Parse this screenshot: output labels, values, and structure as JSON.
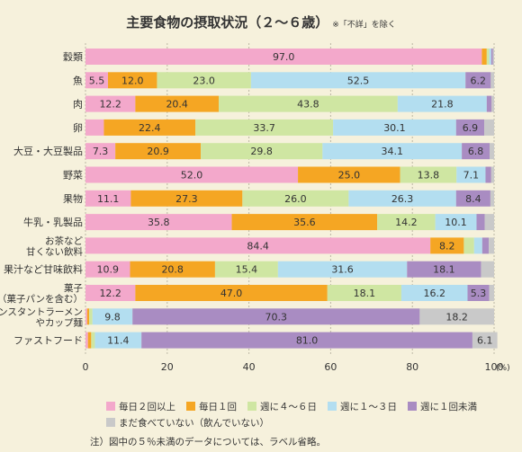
{
  "title": "主要食物の摂取状況（２〜６歳）",
  "note": "※「不詳」を除く",
  "footnote": "注）図中の５％未満のデータについては、ラベル省略。",
  "colors": [
    "#f3a8cb",
    "#f5a623",
    "#cfe6a2",
    "#b3def0",
    "#a98cc2",
    "#c9c9c9"
  ],
  "chart_data": {
    "type": "bar",
    "orientation": "horizontal",
    "stacked": true,
    "categories": [
      "穀類",
      "魚",
      "肉",
      "卵",
      "大豆・大豆製品",
      "野菜",
      "果物",
      "牛乳・乳製品",
      "お茶など\n甘くない飲料",
      "果汁など甘味飲料",
      "菓子\n（菓子パンを含む）",
      "インスタントラーメン\nやカップ麺",
      "ファストフード"
    ],
    "series": [
      {
        "name": "毎日２回以上",
        "values": [
          97.0,
          5.5,
          12.2,
          4.5,
          7.3,
          52.0,
          11.1,
          35.8,
          84.4,
          10.9,
          12.2,
          0.4,
          0.6
        ]
      },
      {
        "name": "毎日１回",
        "values": [
          1.2,
          12.0,
          20.4,
          22.4,
          20.9,
          25.0,
          27.3,
          35.6,
          8.2,
          20.8,
          47.0,
          0.5,
          0.8
        ]
      },
      {
        "name": "週に４〜６日",
        "values": [
          0.6,
          23.0,
          43.8,
          33.7,
          29.8,
          13.8,
          26.0,
          14.2,
          2.5,
          15.4,
          18.1,
          0.8,
          0.9
        ]
      },
      {
        "name": "週に１〜３日",
        "values": [
          0.5,
          52.5,
          21.8,
          30.1,
          34.1,
          7.1,
          26.3,
          10.1,
          2.0,
          31.6,
          16.2,
          9.8,
          11.4
        ]
      },
      {
        "name": "週に１回未満",
        "values": [
          0.4,
          6.2,
          1.2,
          6.9,
          6.8,
          1.4,
          8.4,
          2.0,
          1.6,
          18.1,
          5.3,
          70.3,
          81.0
        ]
      },
      {
        "name": "まだ食べていない（飲んでいない）",
        "values": [
          0.3,
          0.8,
          0.6,
          2.4,
          1.1,
          0.7,
          0.9,
          2.3,
          1.3,
          3.2,
          1.2,
          18.2,
          6.1
        ]
      }
    ],
    "labels_shown": [
      [
        "97.0",
        "",
        "",
        "",
        "",
        ""
      ],
      [
        "5.5",
        "12.0",
        "23.0",
        "52.5",
        "6.2",
        ""
      ],
      [
        "12.2",
        "20.4",
        "43.8",
        "21.8",
        "",
        ""
      ],
      [
        "",
        "22.4",
        "33.7",
        "30.1",
        "6.9",
        ""
      ],
      [
        "7.3",
        "20.9",
        "29.8",
        "34.1",
        "6.8",
        ""
      ],
      [
        "52.0",
        "25.0",
        "13.8",
        "7.1",
        "",
        ""
      ],
      [
        "11.1",
        "27.3",
        "26.0",
        "26.3",
        "8.4",
        ""
      ],
      [
        "35.8",
        "35.6",
        "14.2",
        "10.1",
        "",
        ""
      ],
      [
        "84.4",
        "8.2",
        "",
        "",
        "",
        ""
      ],
      [
        "10.9",
        "20.8",
        "15.4",
        "31.6",
        "18.1",
        ""
      ],
      [
        "12.2",
        "47.0",
        "18.1",
        "16.2",
        "5.3",
        ""
      ],
      [
        "",
        "",
        "",
        "9.8",
        "70.3",
        "18.2"
      ],
      [
        "",
        "",
        "",
        "11.4",
        "81.0",
        "6.1"
      ]
    ],
    "xlim": [
      0,
      100
    ],
    "xticks": [
      "0",
      "20",
      "40",
      "60",
      "80",
      "100"
    ],
    "xunit": "(%)",
    "grid": true,
    "legend_position": "bottom"
  }
}
